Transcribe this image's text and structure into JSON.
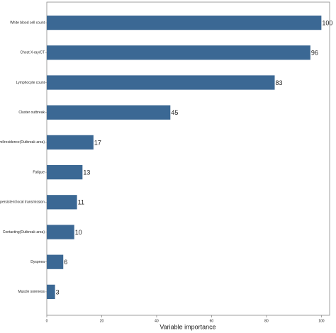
{
  "chart_data": {
    "type": "barh",
    "categories": [
      "White blood cell count",
      "Chest X-ray/CT",
      "Lymphocyte count",
      "Cluster outbreak",
      "Travel/residence(Outbreak area)",
      "Fatigue",
      "Contacting persistent local transmission",
      "Contacting(Outbreak area)",
      "Dyspnea",
      "Muscle soreness"
    ],
    "values": [
      100,
      96,
      83,
      45,
      17,
      13,
      11,
      10,
      6,
      3
    ],
    "color": "#3b6894",
    "xlabel": "Variable importance",
    "xlim": [
      0,
      103
    ],
    "xticks": [
      0,
      20,
      40,
      60,
      80,
      100
    ]
  }
}
